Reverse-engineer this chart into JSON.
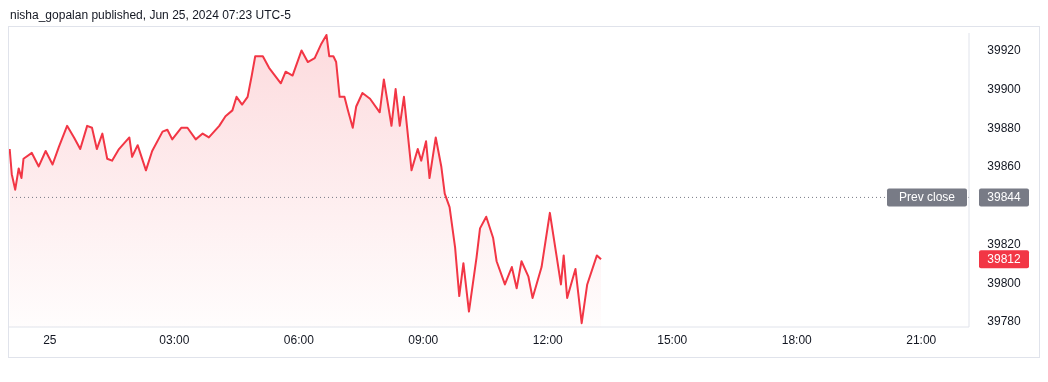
{
  "chart_data": {
    "type": "area",
    "title": "nisha_gopalan published, Jun 25, 2024 07:23 UTC-5",
    "x": [
      "2024-06-24T23:02",
      "2024-06-24T23:05",
      "2024-06-24T23:10",
      "2024-06-24T23:15",
      "2024-06-24T23:19",
      "2024-06-24T23:22",
      "2024-06-24T23:34",
      "2024-06-24T23:44",
      "2024-06-24T23:54",
      "2024-06-25T00:04",
      "2024-06-25T00:13",
      "2024-06-25T00:25",
      "2024-06-25T00:35",
      "2024-06-25T00:44",
      "2024-06-25T00:54",
      "2024-06-25T01:01",
      "2024-06-25T01:08",
      "2024-06-25T01:16",
      "2024-06-25T01:23",
      "2024-06-25T01:30",
      "2024-06-25T01:40",
      "2024-06-25T01:55",
      "2024-06-25T01:59",
      "2024-06-25T02:07",
      "2024-06-25T02:19",
      "2024-06-25T02:28",
      "2024-06-25T02:43",
      "2024-06-25T02:50",
      "2024-06-25T02:57",
      "2024-06-25T03:10",
      "2024-06-25T03:19",
      "2024-06-25T03:31",
      "2024-06-25T03:41",
      "2024-06-25T03:50",
      "2024-06-25T04:05",
      "2024-06-25T04:14",
      "2024-06-25T04:24",
      "2024-06-25T04:30",
      "2024-06-25T04:38",
      "2024-06-25T04:46",
      "2024-06-25T04:52",
      "2024-06-25T04:57",
      "2024-06-25T05:08",
      "2024-06-25T05:17",
      "2024-06-25T05:34",
      "2024-06-25T05:41",
      "2024-06-25T05:51",
      "2024-06-25T06:04",
      "2024-06-25T06:13",
      "2024-06-25T06:23",
      "2024-06-25T06:32",
      "2024-06-25T06:40",
      "2024-06-25T06:44",
      "2024-06-25T06:50",
      "2024-06-25T06:54",
      "2024-06-25T06:59",
      "2024-06-25T07:06",
      "2024-06-25T07:11",
      "2024-06-25T07:18",
      "2024-06-25T07:23",
      "2024-06-25T07:32",
      "2024-06-25T07:43",
      "2024-06-25T07:57",
      "2024-06-25T08:03",
      "2024-06-25T08:14",
      "2024-06-25T08:20",
      "2024-06-25T08:26",
      "2024-06-25T08:32",
      "2024-06-25T08:43",
      "2024-06-25T08:52",
      "2024-06-25T08:57",
      "2024-06-25T09:04",
      "2024-06-25T09:09",
      "2024-06-25T09:18",
      "2024-06-25T09:26",
      "2024-06-25T09:31",
      "2024-06-25T09:38",
      "2024-06-25T09:46",
      "2024-06-25T09:52",
      "2024-06-25T09:58",
      "2024-06-25T10:06",
      "2024-06-25T10:17",
      "2024-06-25T10:22",
      "2024-06-25T10:31",
      "2024-06-25T10:41",
      "2024-06-25T10:46",
      "2024-06-25T10:58",
      "2024-06-25T11:08",
      "2024-06-25T11:15",
      "2024-06-25T11:22",
      "2024-06-25T11:32",
      "2024-06-25T11:38",
      "2024-06-25T11:51",
      "2024-06-25T12:03",
      "2024-06-25T12:13",
      "2024-06-25T12:19",
      "2024-06-25T12:23",
      "2024-06-25T12:28",
      "2024-06-25T12:40",
      "2024-06-25T12:49",
      "2024-06-25T12:57",
      "2024-06-25T13:11",
      "2024-06-25T13:17"
    ],
    "series": [
      {
        "color": "#f23645",
        "values": [
          39869,
          39856,
          39848,
          39859,
          39854,
          39864,
          39867,
          39860,
          39868,
          39861,
          39870,
          39881,
          39875,
          39869,
          39881,
          39880,
          39869,
          39877,
          39864,
          39863,
          39869,
          39875,
          39865,
          39871,
          39858,
          39868,
          39878,
          39879,
          39874,
          39880,
          39880,
          39874,
          39877,
          39875,
          39881,
          39886,
          39889,
          39896,
          39892,
          39896,
          39907,
          39917,
          39917,
          39911,
          39903,
          39909,
          39907,
          39920,
          39914,
          39916,
          39923,
          39928,
          39917,
          39917,
          39914,
          39896,
          39896,
          39889,
          39880,
          39891,
          39898,
          39895,
          39888,
          39905,
          39881,
          39900,
          39881,
          39896,
          39858,
          39869,
          39863,
          39873,
          39854,
          39875,
          39860,
          39846,
          39839,
          39818,
          39793,
          39810,
          39785,
          39813,
          39828,
          39834,
          39823,
          39811,
          39799,
          39808,
          39797,
          39811,
          39803,
          39792,
          39808,
          39836,
          39813,
          39799,
          39814,
          39792,
          39807,
          39779,
          39799,
          39814,
          39812
        ]
      }
    ],
    "xlim": [
      "2024-06-24T23:01",
      "2024-06-25T22:09"
    ],
    "xticks": [
      {
        "value": "2024-06-25T00:00",
        "label": "25"
      },
      {
        "value": "2024-06-25T03:00",
        "label": "03:00"
      },
      {
        "value": "2024-06-25T06:00",
        "label": "06:00"
      },
      {
        "value": "2024-06-25T09:00",
        "label": "09:00"
      },
      {
        "value": "2024-06-25T12:00",
        "label": "12:00"
      },
      {
        "value": "2024-06-25T15:00",
        "label": "15:00"
      },
      {
        "value": "2024-06-25T18:00",
        "label": "18:00"
      },
      {
        "value": "2024-06-25T21:00",
        "label": "21:00"
      }
    ],
    "ylim": [
      39777,
      39929
    ],
    "yticks": [
      39780,
      39800,
      39812,
      39820,
      39844,
      39860,
      39880,
      39900,
      39920
    ],
    "grid": false,
    "marker": "none",
    "line_style": "solid",
    "ref_lines": [
      {
        "axis": "y",
        "value": 39844,
        "label": "Prev close",
        "color": "#787b86",
        "line_style": "dotted"
      }
    ]
  }
}
